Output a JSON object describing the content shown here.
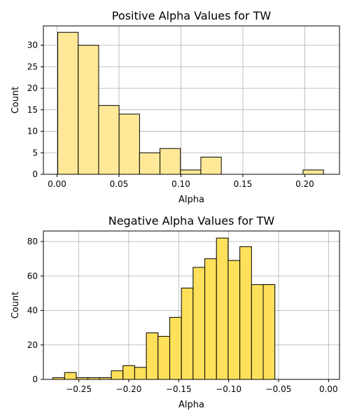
{
  "chart_data": [
    {
      "type": "bar",
      "title": "Positive Alpha Values for TW",
      "xlabel": "Alpha",
      "ylabel": "Count",
      "xlim": [
        -0.011,
        0.228
      ],
      "ylim": [
        0,
        34.5
      ],
      "xticks": [
        0.0,
        0.05,
        0.1,
        0.15,
        0.2
      ],
      "xtick_labels": [
        "0.00",
        "0.05",
        "0.10",
        "0.15",
        "0.20"
      ],
      "yticks": [
        0,
        5,
        10,
        15,
        20,
        25,
        30
      ],
      "ytick_labels": [
        "0",
        "5",
        "10",
        "15",
        "20",
        "25",
        "30"
      ],
      "grid": true,
      "bar_color": "#ffe999",
      "bins": [
        {
          "x0": 0.0006,
          "x1": 0.0171,
          "count": 33
        },
        {
          "x0": 0.0171,
          "x1": 0.0336,
          "count": 30
        },
        {
          "x0": 0.0336,
          "x1": 0.0501,
          "count": 16
        },
        {
          "x0": 0.0501,
          "x1": 0.0666,
          "count": 14
        },
        {
          "x0": 0.0666,
          "x1": 0.0831,
          "count": 5
        },
        {
          "x0": 0.0831,
          "x1": 0.0996,
          "count": 6
        },
        {
          "x0": 0.0996,
          "x1": 0.1161,
          "count": 1
        },
        {
          "x0": 0.1161,
          "x1": 0.1326,
          "count": 4
        },
        {
          "x0": 0.1326,
          "x1": 0.1491,
          "count": 0
        },
        {
          "x0": 0.1491,
          "x1": 0.1656,
          "count": 0
        },
        {
          "x0": 0.1656,
          "x1": 0.1821,
          "count": 0
        },
        {
          "x0": 0.1821,
          "x1": 0.1986,
          "count": 0
        },
        {
          "x0": 0.1986,
          "x1": 0.2151,
          "count": 1
        }
      ]
    },
    {
      "type": "bar",
      "title": "Negative Alpha Values for TW",
      "xlabel": "Alpha",
      "ylabel": "Count",
      "xlim": [
        -0.2855,
        0.011
      ],
      "ylim": [
        0,
        86.1
      ],
      "xticks": [
        -0.25,
        -0.2,
        -0.15,
        -0.1,
        -0.05,
        0.0
      ],
      "xtick_labels": [
        "−0.25",
        "−0.20",
        "−0.15",
        "−0.10",
        "−0.05",
        "0.00"
      ],
      "yticks": [
        0,
        20,
        40,
        60,
        80
      ],
      "ytick_labels": [
        "0",
        "20",
        "40",
        "60",
        "80"
      ],
      "grid": true,
      "bar_color": "#ffe05a",
      "bins": [
        {
          "x0": -0.276,
          "x1": -0.2643,
          "count": 1
        },
        {
          "x0": -0.2643,
          "x1": -0.2526,
          "count": 4
        },
        {
          "x0": -0.2526,
          "x1": -0.2409,
          "count": 1
        },
        {
          "x0": -0.2409,
          "x1": -0.2292,
          "count": 1
        },
        {
          "x0": -0.2292,
          "x1": -0.2175,
          "count": 1
        },
        {
          "x0": -0.2175,
          "x1": -0.2058,
          "count": 5
        },
        {
          "x0": -0.2058,
          "x1": -0.1941,
          "count": 8
        },
        {
          "x0": -0.1941,
          "x1": -0.1824,
          "count": 7
        },
        {
          "x0": -0.1824,
          "x1": -0.1707,
          "count": 27
        },
        {
          "x0": -0.1707,
          "x1": -0.159,
          "count": 25
        },
        {
          "x0": -0.159,
          "x1": -0.1473,
          "count": 36
        },
        {
          "x0": -0.1473,
          "x1": -0.1356,
          "count": 53
        },
        {
          "x0": -0.1356,
          "x1": -0.1239,
          "count": 65
        },
        {
          "x0": -0.1239,
          "x1": -0.1122,
          "count": 70
        },
        {
          "x0": -0.1122,
          "x1": -0.1005,
          "count": 82
        },
        {
          "x0": -0.1005,
          "x1": -0.0888,
          "count": 69
        },
        {
          "x0": -0.0888,
          "x1": -0.0771,
          "count": 77
        },
        {
          "x0": -0.0771,
          "x1": -0.0654,
          "count": 55
        },
        {
          "x0": -0.0654,
          "x1": -0.0537,
          "count": 55
        }
      ]
    }
  ]
}
